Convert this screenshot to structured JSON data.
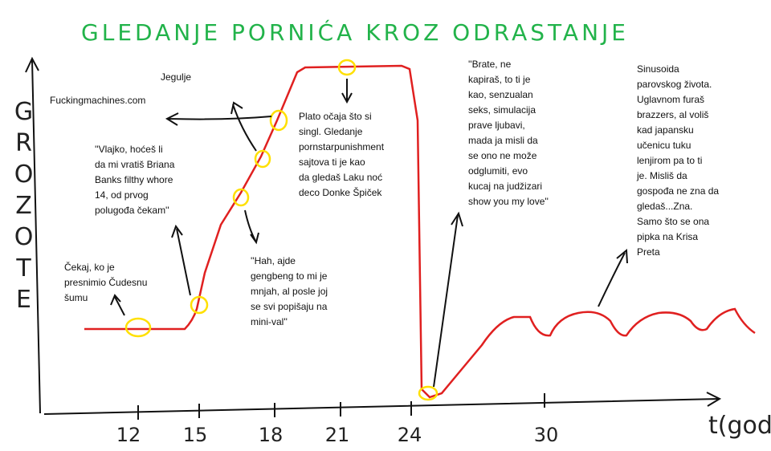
{
  "title": "GLEDANJE PORNIĆA KROZ ODRASTANJE",
  "y_label": "GROZOTE",
  "x_label": "t(god)",
  "x_ticks": [
    "12",
    "15",
    "18",
    "21",
    "24",
    "30"
  ],
  "annotations": [
    [
      "Čekaj, ko je",
      "presnimio Čudesnu",
      "šumu"
    ],
    [
      "''Vlajko, hoćeš li",
      "da mi vratiš Briana",
      "Banks filthy whore",
      "14, od prvog",
      "polugođa čekam''"
    ],
    [
      "Fuckingmachines.com"
    ],
    [
      "Jegulje"
    ],
    [
      "''Hah, ajde",
      "gengbeng to mi je",
      "mnjah, al posle joj",
      "se svi popišaju na",
      "mini-val''"
    ],
    [
      "Plato očaja što si",
      "singl. Gledanje",
      "pornstarpunishment",
      "sajtova ti je kao",
      "da gledaš Laku noć",
      "deco Donke Špiček"
    ],
    [
      "''Brate, ne",
      "kapiraš, to ti je",
      "kao, senzualan",
      "seks, simulacija",
      "prave ljubavi,",
      "mada ja misli da",
      "se ono ne može",
      "odglumiti, evo",
      "kucaj na judžizari",
      "show you my love''"
    ],
    [
      "Sinusoida",
      "parovskog života.",
      "Uglavnom furaš",
      "brazzers, al voliš",
      "kad japansku",
      "učenicu tuku",
      "lenjirom pa to ti",
      "je. Misliš da",
      "gospođa ne zna da",
      "gledaš...Zna.",
      "Samo što se ona",
      "pipka na Krisa",
      "Preta"
    ]
  ]
}
